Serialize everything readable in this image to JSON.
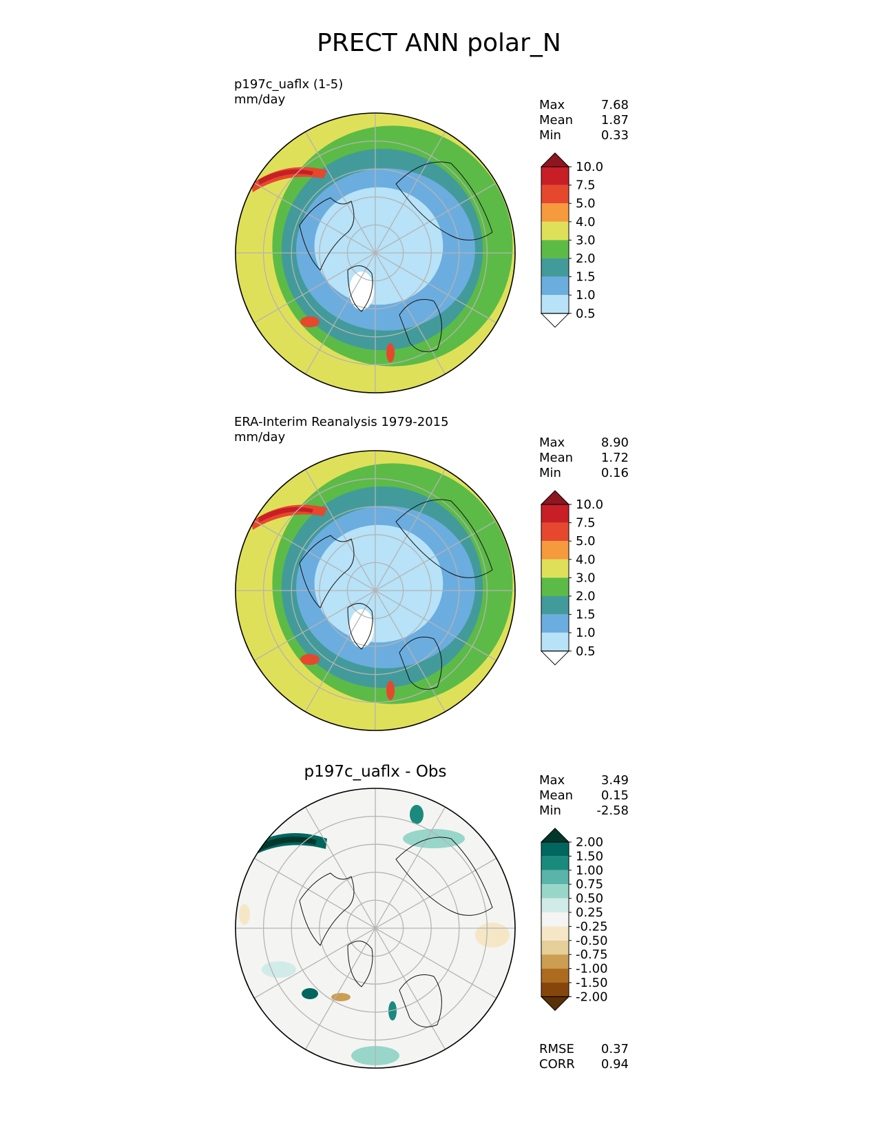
{
  "figure_title": "PRECT ANN polar_N",
  "chart_data": [
    {
      "type": "heatmap",
      "projection": "north-polar-stereographic",
      "title_left": "p197c_uaflx (1-5)",
      "units": "mm/day",
      "stats": [
        {
          "label": "Max",
          "value": "7.68"
        },
        {
          "label": "Mean",
          "value": "1.87"
        },
        {
          "label": "Min",
          "value": "0.33"
        }
      ],
      "colorbar": {
        "levels": [
          "10.0",
          "7.5",
          "5.0",
          "4.0",
          "3.0",
          "2.0",
          "1.5",
          "1.0",
          "0.5"
        ],
        "colors": [
          "#8e1620",
          "#c81e26",
          "#e6482d",
          "#f59a3d",
          "#dfe05a",
          "#5cbb47",
          "#429b9a",
          "#6caddf",
          "#b7e2f7",
          "#ffffff"
        ]
      }
    },
    {
      "type": "heatmap",
      "projection": "north-polar-stereographic",
      "title_left": "ERA-Interim Reanalysis 1979-2015",
      "units": "mm/day",
      "stats": [
        {
          "label": "Max",
          "value": "8.90"
        },
        {
          "label": "Mean",
          "value": "1.72"
        },
        {
          "label": "Min",
          "value": "0.16"
        }
      ],
      "colorbar": {
        "levels": [
          "10.0",
          "7.5",
          "5.0",
          "4.0",
          "3.0",
          "2.0",
          "1.5",
          "1.0",
          "0.5"
        ],
        "colors": [
          "#8e1620",
          "#c81e26",
          "#e6482d",
          "#f59a3d",
          "#dfe05a",
          "#5cbb47",
          "#429b9a",
          "#6caddf",
          "#b7e2f7",
          "#ffffff"
        ]
      }
    },
    {
      "type": "heatmap",
      "projection": "north-polar-stereographic",
      "title_center": "p197c_uaflx - Obs",
      "stats": [
        {
          "label": "Max",
          "value": "3.49"
        },
        {
          "label": "Mean",
          "value": "0.15"
        },
        {
          "label": "Min",
          "value": "-2.58"
        }
      ],
      "metrics": [
        {
          "label": "RMSE",
          "value": "0.37"
        },
        {
          "label": "CORR",
          "value": "0.94"
        }
      ],
      "colorbar": {
        "levels": [
          "2.00",
          "1.50",
          "1.00",
          "0.75",
          "0.50",
          "0.25",
          "-0.25",
          "-0.50",
          "-0.75",
          "-1.00",
          "-1.50",
          "-2.00"
        ],
        "colors": [
          "#01382c",
          "#01665e",
          "#1a8a7d",
          "#5ab4a9",
          "#98d6c9",
          "#d1ece8",
          "#f4f4f2",
          "#f5e6c6",
          "#e6cf98",
          "#cb9e52",
          "#ad6b1f",
          "#86460b",
          "#5a3006"
        ]
      }
    }
  ]
}
